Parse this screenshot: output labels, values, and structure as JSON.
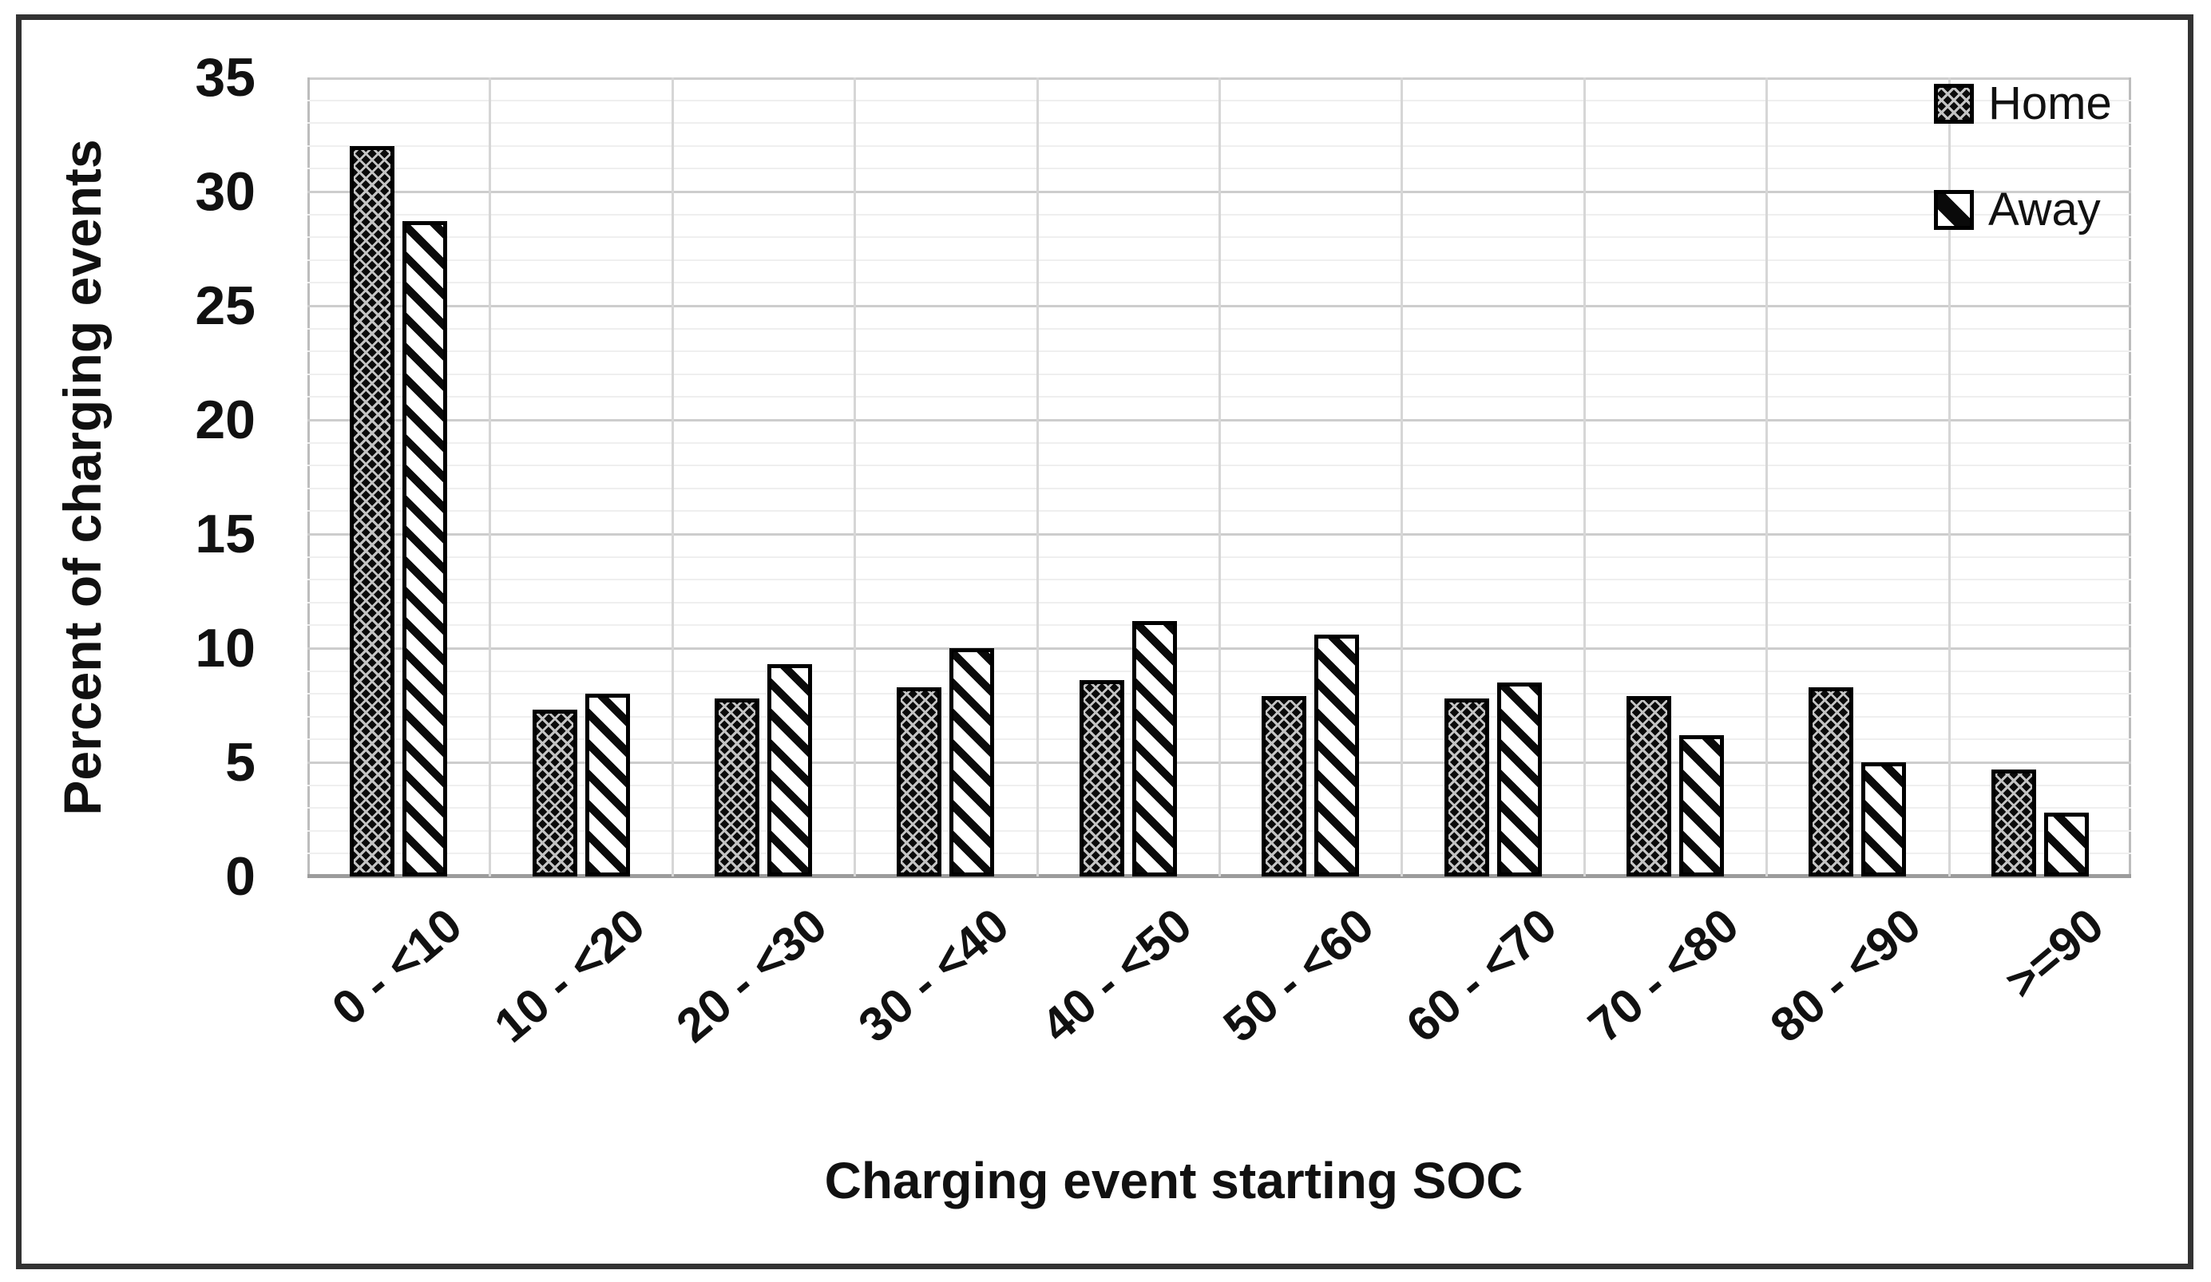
{
  "figure": {
    "background": "#ffffff",
    "border_color": "#333333"
  },
  "chart_data": {
    "type": "bar",
    "title": "",
    "xlabel": "Charging event starting SOC",
    "ylabel": "Percent of charging events",
    "categories": [
      "0 - <10",
      "10 - <20",
      "20 - <30",
      "30 - <40",
      "40 - <50",
      "50 - <60",
      "60 - <70",
      "70 - <80",
      "80 - <90",
      ">=90"
    ],
    "series": [
      {
        "name": "Home",
        "pattern": "diamond-crosshatch-on-black",
        "values": [
          32.0,
          7.3,
          7.8,
          8.3,
          8.6,
          7.9,
          7.8,
          7.9,
          8.3,
          4.7
        ]
      },
      {
        "name": "Away",
        "pattern": "wide-downward-diagonal-stripes",
        "values": [
          28.7,
          8.0,
          9.3,
          10.0,
          11.2,
          10.6,
          8.5,
          6.2,
          5.0,
          2.8
        ]
      }
    ],
    "ylim": [
      0,
      35
    ],
    "yticks": [
      0,
      5,
      10,
      15,
      20,
      25,
      30,
      35
    ],
    "ytick_step": 5,
    "minor_ytick_step": 1,
    "grid": {
      "major_horizontal": true,
      "minor_horizontal": true,
      "vertical_category_boundaries": true
    },
    "legend_position": "top-right",
    "bar_colors": {
      "ink": "#000000",
      "pattern_line": "#c4c4c4",
      "fill_home_bg": "#0b0b0b",
      "fill_away_bg": "#ffffff"
    }
  }
}
